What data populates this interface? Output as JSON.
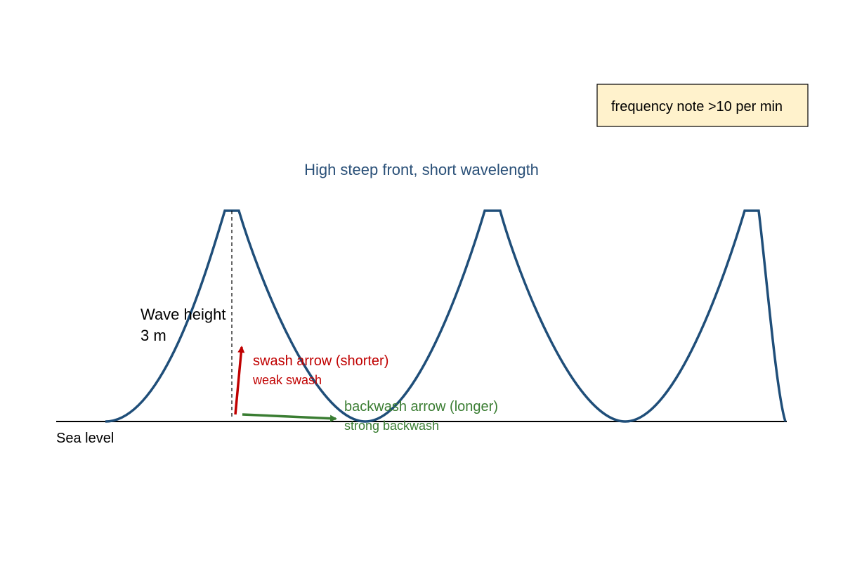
{
  "note": {
    "text": "frequency note >10 per min"
  },
  "title": "High steep front, short wavelength",
  "wave_height": {
    "lines": [
      "Wave height",
      "3 m"
    ]
  },
  "swash": {
    "label": "swash arrow (shorter)",
    "sublabel": "weak swash"
  },
  "backwash": {
    "label": "backwash arrow (longer)",
    "sublabel": "strong backwash"
  },
  "sea_level": "Sea level"
}
